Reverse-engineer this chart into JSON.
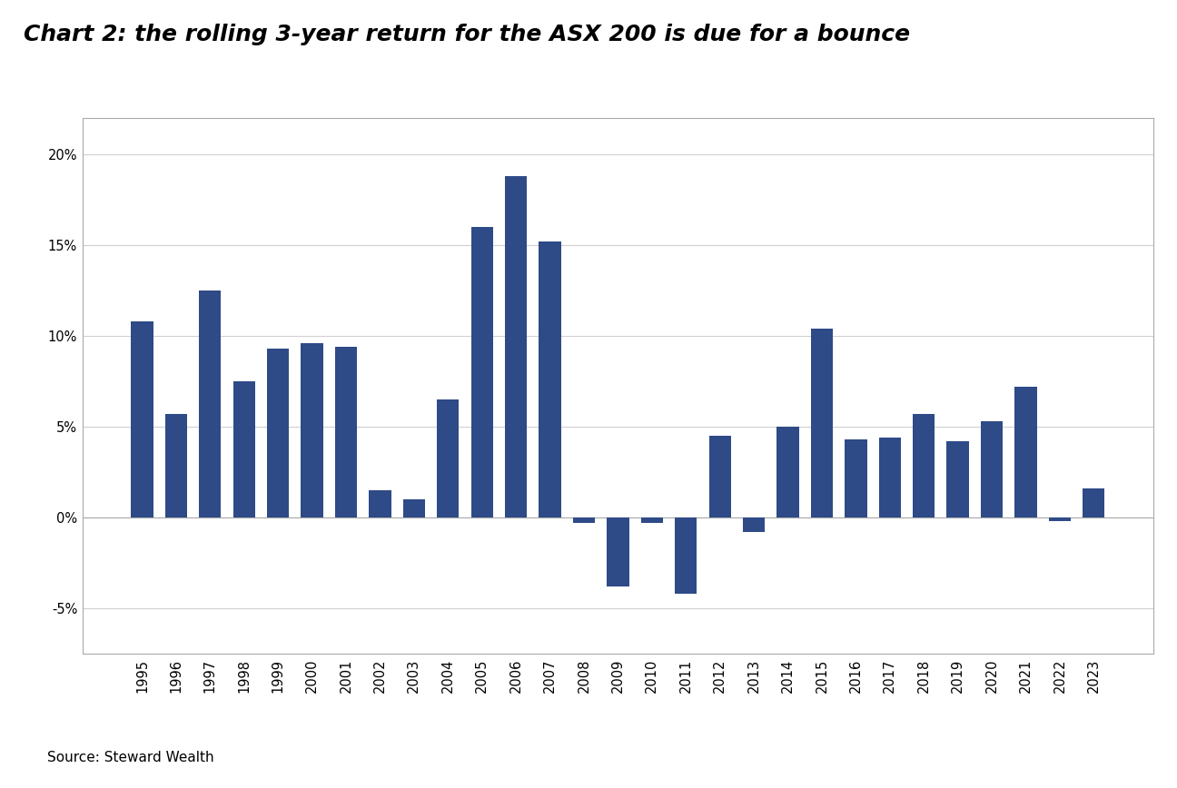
{
  "title": "Chart 2: the rolling 3-year return for the ASX 200 is due for a bounce",
  "source": "Source: Steward Wealth",
  "years": [
    1995,
    1996,
    1997,
    1998,
    1999,
    2000,
    2001,
    2002,
    2003,
    2004,
    2005,
    2006,
    2007,
    2008,
    2009,
    2010,
    2011,
    2012,
    2013,
    2014,
    2015,
    2016,
    2017,
    2018,
    2019,
    2020,
    2021,
    2022,
    2023
  ],
  "values": [
    0.108,
    0.057,
    0.125,
    0.075,
    0.093,
    0.096,
    0.094,
    0.015,
    0.01,
    0.065,
    0.16,
    0.188,
    0.152,
    -0.003,
    -0.038,
    -0.003,
    -0.042,
    0.045,
    -0.008,
    0.05,
    0.104,
    0.043,
    0.044,
    0.057,
    0.042,
    0.053,
    0.072,
    -0.002,
    0.016
  ],
  "bar_color": "#2E4A87",
  "background_color": "#FFFFFF",
  "ylim": [
    -0.075,
    0.22
  ],
  "yticks": [
    -0.05,
    0.0,
    0.05,
    0.1,
    0.15,
    0.2
  ],
  "ytick_labels": [
    "-5%",
    "0%",
    "5%",
    "10%",
    "15%",
    "20%"
  ],
  "grid_color": "#D0D0D0",
  "title_fontsize": 18,
  "axis_fontsize": 10.5,
  "source_fontsize": 11
}
